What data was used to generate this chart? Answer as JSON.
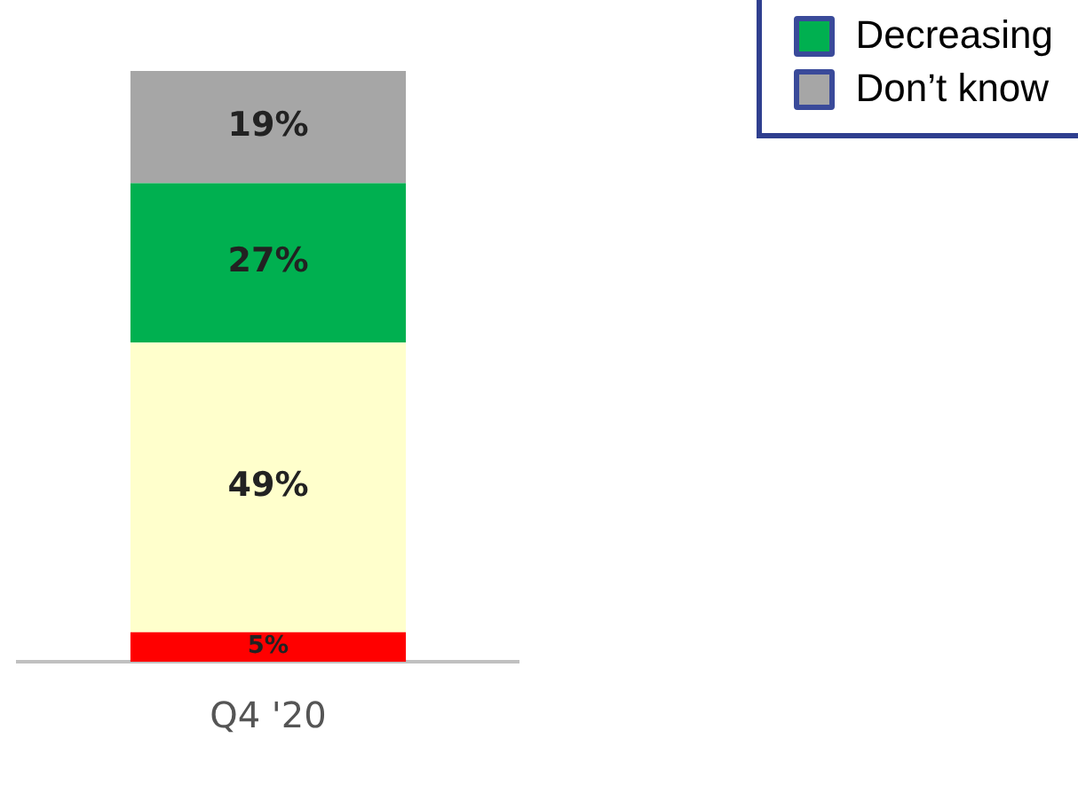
{
  "chart_data": {
    "type": "bar",
    "stacked": true,
    "categories": [
      "Q4 '20"
    ],
    "series": [
      {
        "color": "#ff0000",
        "values": [
          5
        ],
        "value_labels": [
          "5%"
        ]
      },
      {
        "color": "#ffffcc",
        "values": [
          49
        ],
        "value_labels": [
          "49%"
        ]
      },
      {
        "name": "Decreasing",
        "color": "#00b050",
        "values": [
          27
        ],
        "value_labels": [
          "27%"
        ]
      },
      {
        "name": "Don’t know",
        "color": "#a6a6a6",
        "values": [
          19
        ],
        "value_labels": [
          "19%"
        ]
      }
    ],
    "legend": "top right",
    "tick_labels": "x",
    "grid": false
  }
}
